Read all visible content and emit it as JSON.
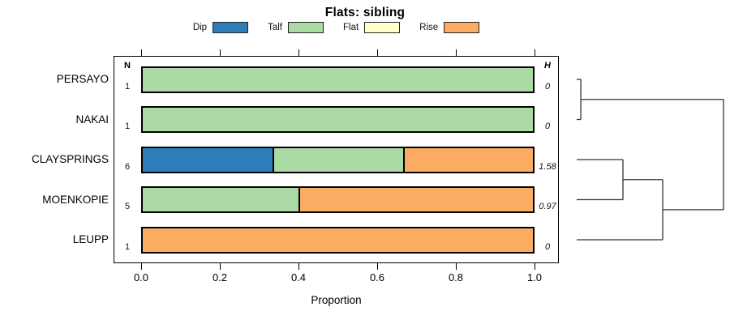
{
  "title": "Flats: sibling",
  "legend": [
    {
      "label": "Dip",
      "color": "#2e7ebc"
    },
    {
      "label": "Talf",
      "color": "#abdaa4"
    },
    {
      "label": "Flat",
      "color": "#ffffcc"
    },
    {
      "label": "Rise",
      "color": "#fbac62"
    }
  ],
  "columns": {
    "n_header": "N",
    "h_header": "H"
  },
  "x_axis": {
    "title": "Proportion",
    "tick_labels": [
      "0.0",
      "0.2",
      "0.4",
      "0.6",
      "0.8",
      "1.0"
    ]
  },
  "chart_data": {
    "type": "bar",
    "subtype": "horizontal-stacked-proportion-with-dendrogram",
    "title": "Flats: sibling",
    "xlabel": "Proportion",
    "xlim": [
      0,
      1
    ],
    "x_ticks": [
      0,
      0.2,
      0.4,
      0.6,
      0.8,
      1.0
    ],
    "grid": false,
    "legend_position": "top-center",
    "categories": [
      "PERSAYO",
      "NAKAI",
      "CLAYSPRINGS",
      "MOENKOPIE",
      "LEUPP"
    ],
    "sample_sizes": [
      1,
      1,
      6,
      5,
      1
    ],
    "entropy_values": [
      "0",
      "0",
      "1.58",
      "0.97",
      "0"
    ],
    "series": [
      {
        "name": "Dip",
        "color": "#2e7ebc",
        "values": [
          0,
          0,
          0.3333,
          0,
          0
        ]
      },
      {
        "name": "Talf",
        "color": "#abdaa4",
        "values": [
          1,
          1,
          0.3334,
          0.4,
          0
        ]
      },
      {
        "name": "Flat",
        "color": "#ffffcc",
        "values": [
          0,
          0,
          0,
          0,
          0
        ]
      },
      {
        "name": "Rise",
        "color": "#fbac62",
        "values": [
          0,
          0,
          0.3333,
          0.6,
          1
        ]
      }
    ],
    "dendrogram": {
      "leaves": [
        "PERSAYO",
        "NAKAI",
        "CLAYSPRINGS",
        "MOENKOPIE",
        "LEUPP"
      ],
      "merges": [
        {
          "a": {
            "leaf": 0
          },
          "b": {
            "leaf": 1
          },
          "height_frac": 0.028
        },
        {
          "a": {
            "leaf": 2
          },
          "b": {
            "leaf": 3
          },
          "height_frac": 0.315
        },
        {
          "a": {
            "merge": 1
          },
          "b": {
            "leaf": 4
          },
          "height_frac": 0.586
        },
        {
          "a": {
            "merge": 0
          },
          "b": {
            "merge": 2
          },
          "height_frac": 1.0
        }
      ]
    }
  }
}
